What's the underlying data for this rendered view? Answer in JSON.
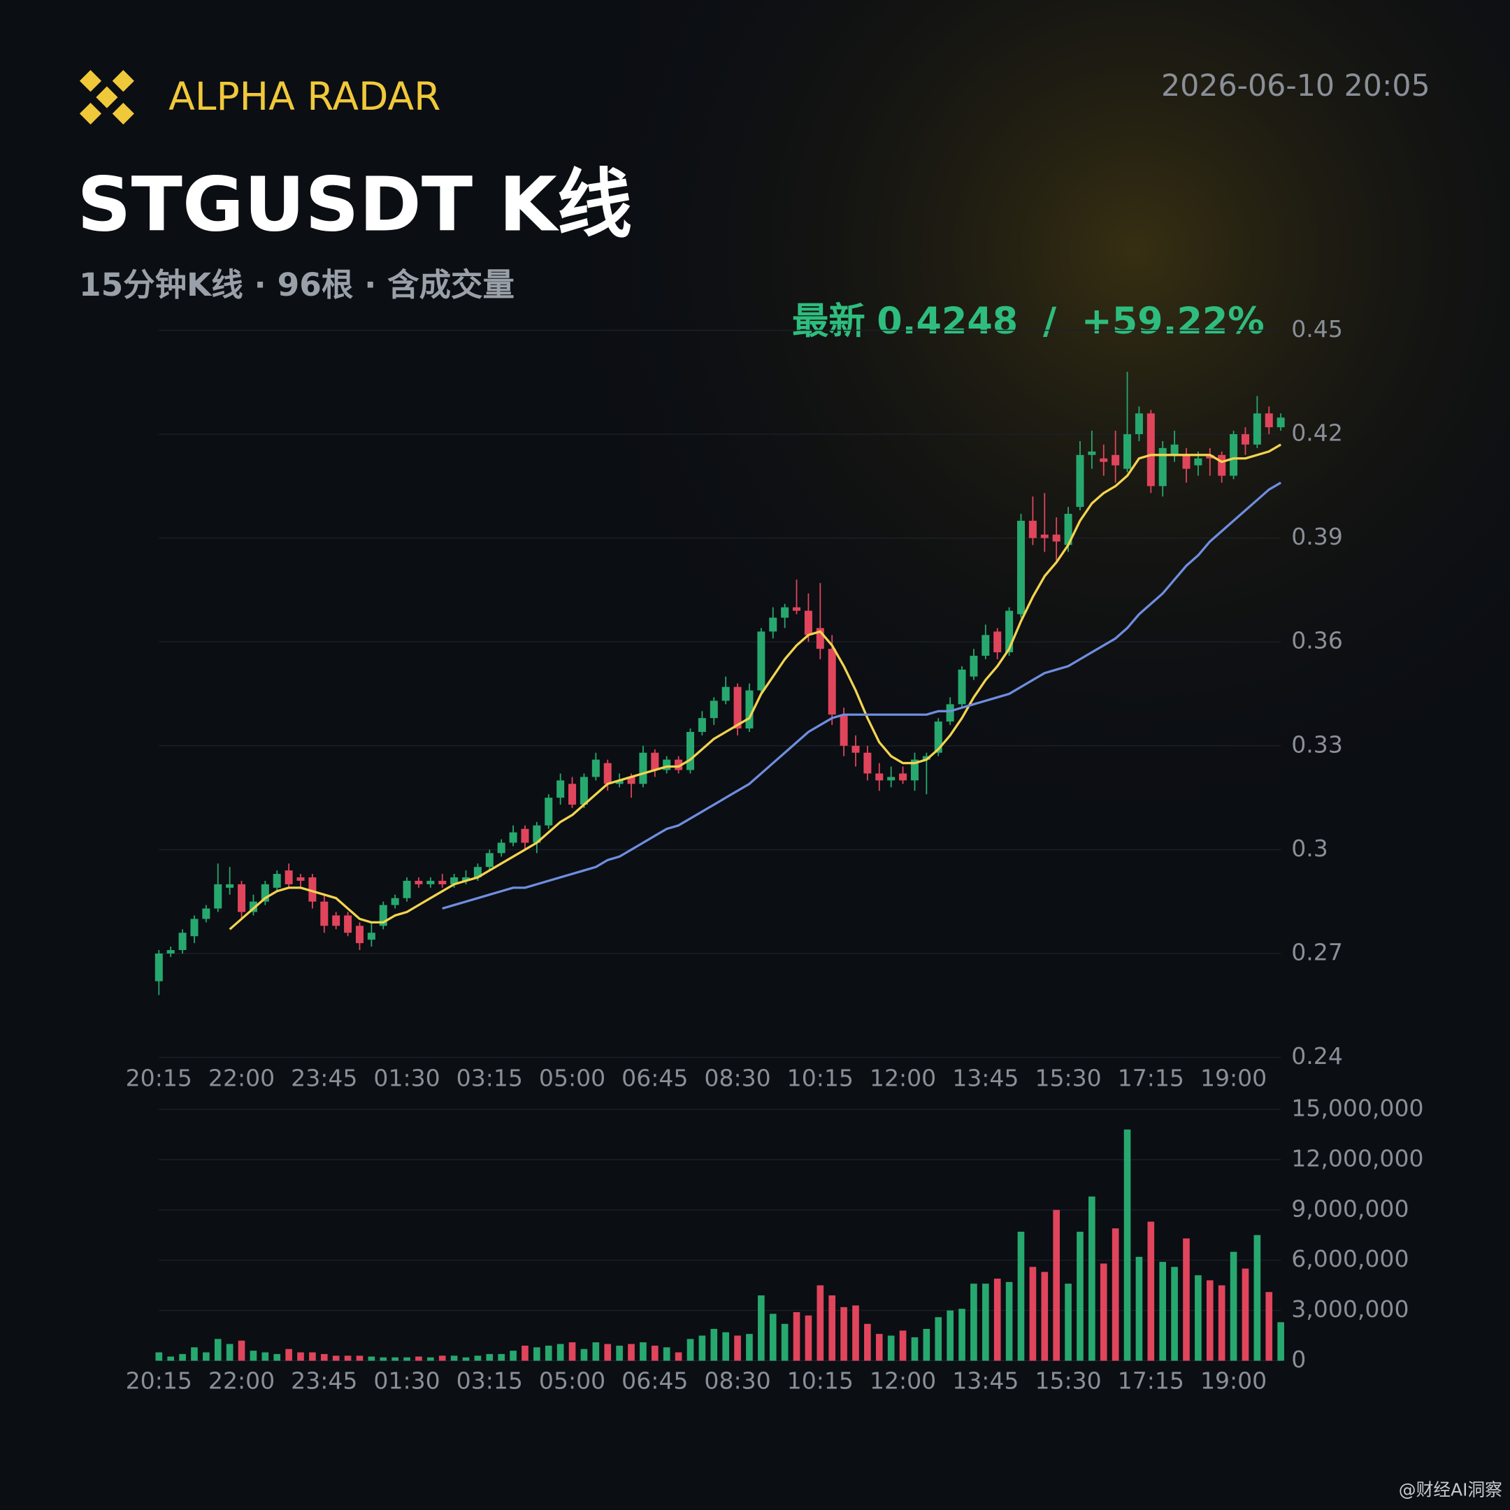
{
  "header": {
    "brand": "ALPHA RADAR",
    "datetime": "2026-06-10 20:05",
    "title": "STGUSDT K线",
    "subtitle": "15分钟K线 · 96根 · 含成交量",
    "latest": {
      "label": "最新",
      "value": 0.4248,
      "separator": "/",
      "change": {
        "value": 59.22,
        "label": "+59.22%"
      }
    },
    "watermark": "@财经AI洞察"
  },
  "chart_data": [
    {
      "type": "candlestick",
      "up_color": "#27a86f",
      "down_color": "#e0455c",
      "grid": true,
      "categories": [
        "20:15",
        null,
        null,
        null,
        null,
        null,
        null,
        "22:00",
        null,
        null,
        null,
        null,
        null,
        null,
        "23:45",
        null,
        null,
        null,
        null,
        null,
        null,
        "01:30",
        null,
        null,
        null,
        null,
        null,
        null,
        "03:15",
        null,
        null,
        null,
        null,
        null,
        null,
        "05:00",
        null,
        null,
        null,
        null,
        null,
        null,
        "06:45",
        null,
        null,
        null,
        null,
        null,
        null,
        "08:30",
        null,
        null,
        null,
        null,
        null,
        null,
        "10:15",
        null,
        null,
        null,
        null,
        null,
        null,
        "12:00",
        null,
        null,
        null,
        null,
        null,
        null,
        "13:45",
        null,
        null,
        null,
        null,
        null,
        null,
        "15:30",
        null,
        null,
        null,
        null,
        null,
        null,
        "17:15",
        null,
        null,
        null,
        null,
        null,
        null,
        "19:00",
        null,
        null,
        null,
        null
      ],
      "candles": [
        [
          0.262,
          0.271,
          0.258,
          0.27
        ],
        [
          0.27,
          0.272,
          0.269,
          0.271
        ],
        [
          0.271,
          0.277,
          0.27,
          0.276
        ],
        [
          0.275,
          0.281,
          0.273,
          0.28
        ],
        [
          0.28,
          0.284,
          0.279,
          0.283
        ],
        [
          0.283,
          0.296,
          0.282,
          0.29
        ],
        [
          0.289,
          0.295,
          0.287,
          0.29
        ],
        [
          0.29,
          0.291,
          0.28,
          0.282
        ],
        [
          0.282,
          0.287,
          0.281,
          0.285
        ],
        [
          0.285,
          0.291,
          0.284,
          0.29
        ],
        [
          0.289,
          0.294,
          0.288,
          0.293
        ],
        [
          0.294,
          0.296,
          0.289,
          0.29
        ],
        [
          0.292,
          0.293,
          0.289,
          0.291
        ],
        [
          0.292,
          0.293,
          0.283,
          0.285
        ],
        [
          0.285,
          0.287,
          0.276,
          0.278
        ],
        [
          0.281,
          0.282,
          0.277,
          0.278
        ],
        [
          0.281,
          0.282,
          0.275,
          0.276
        ],
        [
          0.278,
          0.279,
          0.271,
          0.273
        ],
        [
          0.274,
          0.279,
          0.272,
          0.276
        ],
        [
          0.278,
          0.285,
          0.277,
          0.284
        ],
        [
          0.284,
          0.287,
          0.283,
          0.286
        ],
        [
          0.286,
          0.292,
          0.285,
          0.291
        ],
        [
          0.291,
          0.292,
          0.289,
          0.29
        ],
        [
          0.29,
          0.292,
          0.289,
          0.291
        ],
        [
          0.291,
          0.293,
          0.289,
          0.29
        ],
        [
          0.29,
          0.293,
          0.289,
          0.292
        ],
        [
          0.291,
          0.294,
          0.29,
          0.292
        ],
        [
          0.292,
          0.296,
          0.291,
          0.295
        ],
        [
          0.295,
          0.3,
          0.294,
          0.299
        ],
        [
          0.299,
          0.303,
          0.298,
          0.302
        ],
        [
          0.302,
          0.307,
          0.301,
          0.305
        ],
        [
          0.306,
          0.307,
          0.3,
          0.302
        ],
        [
          0.302,
          0.308,
          0.299,
          0.307
        ],
        [
          0.307,
          0.316,
          0.306,
          0.315
        ],
        [
          0.315,
          0.322,
          0.313,
          0.32
        ],
        [
          0.319,
          0.321,
          0.312,
          0.313
        ],
        [
          0.313,
          0.322,
          0.312,
          0.321
        ],
        [
          0.321,
          0.328,
          0.32,
          0.326
        ],
        [
          0.325,
          0.326,
          0.317,
          0.319
        ],
        [
          0.319,
          0.322,
          0.318,
          0.32
        ],
        [
          0.321,
          0.322,
          0.315,
          0.319
        ],
        [
          0.319,
          0.33,
          0.318,
          0.328
        ],
        [
          0.328,
          0.329,
          0.321,
          0.323
        ],
        [
          0.323,
          0.327,
          0.322,
          0.326
        ],
        [
          0.326,
          0.327,
          0.322,
          0.323
        ],
        [
          0.323,
          0.335,
          0.322,
          0.334
        ],
        [
          0.334,
          0.34,
          0.333,
          0.338
        ],
        [
          0.338,
          0.344,
          0.336,
          0.343
        ],
        [
          0.343,
          0.35,
          0.342,
          0.347
        ],
        [
          0.347,
          0.348,
          0.333,
          0.335
        ],
        [
          0.335,
          0.348,
          0.334,
          0.346
        ],
        [
          0.346,
          0.364,
          0.345,
          0.363
        ],
        [
          0.363,
          0.37,
          0.361,
          0.367
        ],
        [
          0.367,
          0.371,
          0.364,
          0.37
        ],
        [
          0.37,
          0.378,
          0.368,
          0.369
        ],
        [
          0.369,
          0.374,
          0.36,
          0.362
        ],
        [
          0.364,
          0.377,
          0.355,
          0.358
        ],
        [
          0.358,
          0.362,
          0.336,
          0.339
        ],
        [
          0.339,
          0.341,
          0.327,
          0.33
        ],
        [
          0.33,
          0.333,
          0.324,
          0.328
        ],
        [
          0.328,
          0.33,
          0.32,
          0.322
        ],
        [
          0.322,
          0.325,
          0.317,
          0.32
        ],
        [
          0.32,
          0.324,
          0.318,
          0.321
        ],
        [
          0.322,
          0.324,
          0.319,
          0.32
        ],
        [
          0.32,
          0.328,
          0.317,
          0.326
        ],
        [
          0.326,
          0.328,
          0.316,
          0.327
        ],
        [
          0.328,
          0.338,
          0.327,
          0.337
        ],
        [
          0.337,
          0.344,
          0.336,
          0.342
        ],
        [
          0.342,
          0.353,
          0.341,
          0.352
        ],
        [
          0.35,
          0.358,
          0.349,
          0.356
        ],
        [
          0.356,
          0.365,
          0.355,
          0.362
        ],
        [
          0.363,
          0.364,
          0.355,
          0.357
        ],
        [
          0.357,
          0.37,
          0.356,
          0.369
        ],
        [
          0.368,
          0.397,
          0.367,
          0.395
        ],
        [
          0.395,
          0.402,
          0.388,
          0.39
        ],
        [
          0.391,
          0.403,
          0.386,
          0.39
        ],
        [
          0.391,
          0.396,
          0.383,
          0.389
        ],
        [
          0.388,
          0.399,
          0.386,
          0.397
        ],
        [
          0.399,
          0.418,
          0.398,
          0.414
        ],
        [
          0.414,
          0.421,
          0.41,
          0.415
        ],
        [
          0.413,
          0.417,
          0.408,
          0.412
        ],
        [
          0.414,
          0.421,
          0.406,
          0.411
        ],
        [
          0.41,
          0.438,
          0.409,
          0.42
        ],
        [
          0.42,
          0.428,
          0.418,
          0.426
        ],
        [
          0.426,
          0.427,
          0.403,
          0.405
        ],
        [
          0.405,
          0.418,
          0.402,
          0.416
        ],
        [
          0.414,
          0.421,
          0.412,
          0.417
        ],
        [
          0.414,
          0.416,
          0.406,
          0.41
        ],
        [
          0.411,
          0.415,
          0.408,
          0.413
        ],
        [
          0.414,
          0.416,
          0.408,
          0.413
        ],
        [
          0.414,
          0.415,
          0.406,
          0.408
        ],
        [
          0.408,
          0.421,
          0.407,
          0.42
        ],
        [
          0.42,
          0.422,
          0.414,
          0.417
        ],
        [
          0.417,
          0.431,
          0.416,
          0.426
        ],
        [
          0.426,
          0.428,
          0.42,
          0.422
        ],
        [
          0.422,
          0.426,
          0.421,
          0.4248
        ]
      ],
      "lines": [
        {
          "color": "#f3d44e",
          "values": [
            null,
            null,
            null,
            null,
            null,
            null,
            0.277,
            0.28,
            0.283,
            0.286,
            0.288,
            0.289,
            0.289,
            0.288,
            0.287,
            0.286,
            0.283,
            0.28,
            0.279,
            0.279,
            0.281,
            0.282,
            0.284,
            0.286,
            0.288,
            0.29,
            0.291,
            0.292,
            0.294,
            0.296,
            0.298,
            0.3,
            0.302,
            0.305,
            0.308,
            0.31,
            0.313,
            0.316,
            0.319,
            0.32,
            0.321,
            0.322,
            0.323,
            0.324,
            0.324,
            0.326,
            0.329,
            0.332,
            0.334,
            0.336,
            0.338,
            0.345,
            0.35,
            0.355,
            0.359,
            0.362,
            0.363,
            0.359,
            0.353,
            0.346,
            0.338,
            0.331,
            0.327,
            0.325,
            0.325,
            0.326,
            0.329,
            0.333,
            0.338,
            0.344,
            0.349,
            0.353,
            0.358,
            0.366,
            0.373,
            0.379,
            0.383,
            0.388,
            0.395,
            0.4,
            0.403,
            0.405,
            0.408,
            0.413,
            0.414,
            0.414,
            0.414,
            0.414,
            0.414,
            0.414,
            0.412,
            0.413,
            0.413,
            0.414,
            0.415,
            0.417
          ]
        },
        {
          "color": "#6f8ee0",
          "values": [
            null,
            null,
            null,
            null,
            null,
            null,
            null,
            null,
            null,
            null,
            null,
            null,
            null,
            null,
            null,
            null,
            null,
            null,
            null,
            null,
            null,
            null,
            null,
            null,
            0.283,
            0.284,
            0.285,
            0.286,
            0.287,
            0.288,
            0.289,
            0.289,
            0.29,
            0.291,
            0.292,
            0.293,
            0.294,
            0.295,
            0.297,
            0.298,
            0.3,
            0.302,
            0.304,
            0.306,
            0.307,
            0.309,
            0.311,
            0.313,
            0.315,
            0.317,
            0.319,
            0.322,
            0.325,
            0.328,
            0.331,
            0.334,
            0.336,
            0.338,
            0.339,
            0.339,
            0.339,
            0.339,
            0.339,
            0.339,
            0.339,
            0.339,
            0.34,
            0.34,
            0.341,
            0.342,
            0.343,
            0.344,
            0.345,
            0.347,
            0.349,
            0.351,
            0.352,
            0.353,
            0.355,
            0.357,
            0.359,
            0.361,
            0.364,
            0.368,
            0.371,
            0.374,
            0.378,
            0.382,
            0.385,
            0.389,
            0.392,
            0.395,
            0.398,
            0.401,
            0.404,
            0.406
          ]
        }
      ],
      "ylim": [
        0.24,
        0.45
      ],
      "yticks": [
        0.24,
        0.27,
        0.3,
        0.33,
        0.36,
        0.39,
        0.42,
        0.45
      ]
    },
    {
      "type": "bar",
      "grid": true,
      "categories": [
        "20:15",
        null,
        null,
        null,
        null,
        null,
        null,
        "22:00",
        null,
        null,
        null,
        null,
        null,
        null,
        "23:45",
        null,
        null,
        null,
        null,
        null,
        null,
        "01:30",
        null,
        null,
        null,
        null,
        null,
        null,
        "03:15",
        null,
        null,
        null,
        null,
        null,
        null,
        "05:00",
        null,
        null,
        null,
        null,
        null,
        null,
        "06:45",
        null,
        null,
        null,
        null,
        null,
        null,
        "08:30",
        null,
        null,
        null,
        null,
        null,
        null,
        "10:15",
        null,
        null,
        null,
        null,
        null,
        null,
        "12:00",
        null,
        null,
        null,
        null,
        null,
        null,
        "13:45",
        null,
        null,
        null,
        null,
        null,
        null,
        "15:30",
        null,
        null,
        null,
        null,
        null,
        null,
        "17:15",
        null,
        null,
        null,
        null,
        null,
        null,
        "19:00",
        null,
        null,
        null,
        null
      ],
      "values": [
        500000,
        250000,
        400000,
        800000,
        500000,
        1300000,
        1000000,
        1200000,
        600000,
        500000,
        400000,
        700000,
        500000,
        500000,
        400000,
        300000,
        300000,
        300000,
        250000,
        200000,
        200000,
        200000,
        250000,
        200000,
        300000,
        300000,
        200000,
        300000,
        400000,
        400000,
        600000,
        900000,
        800000,
        900000,
        1000000,
        1100000,
        700000,
        1100000,
        1000000,
        900000,
        1000000,
        1100000,
        900000,
        800000,
        500000,
        1300000,
        1500000,
        1900000,
        1700000,
        1500000,
        1600000,
        3900000,
        2800000,
        2200000,
        2900000,
        2700000,
        4500000,
        3900000,
        3200000,
        3300000,
        2200000,
        1600000,
        1500000,
        1800000,
        1400000,
        1900000,
        2600000,
        3000000,
        3100000,
        4600000,
        4600000,
        4900000,
        4700000,
        7700000,
        5600000,
        5300000,
        9000000,
        4600000,
        7700000,
        9800000,
        5800000,
        7900000,
        13800000,
        6200000,
        8300000,
        5900000,
        5600000,
        7300000,
        5100000,
        4800000,
        4500000,
        6500000,
        5500000,
        7500000,
        4100000,
        2300000
      ],
      "ylim": [
        0,
        15000000
      ],
      "yticks": [
        0,
        {
          "value": 3000000,
          "label": "3,000,000"
        },
        {
          "value": 6000000,
          "label": "6,000,000"
        },
        {
          "value": 9000000,
          "label": "9,000,000"
        },
        {
          "value": 12000000,
          "label": "12,000,000"
        },
        {
          "value": 15000000,
          "label": "15,000,000"
        }
      ]
    }
  ]
}
